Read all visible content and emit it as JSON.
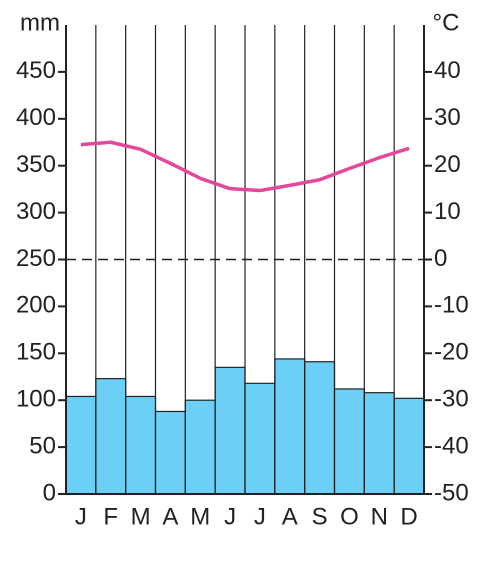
{
  "chart_data": {
    "type": "climate",
    "categories": [
      "J",
      "F",
      "M",
      "A",
      "M",
      "J",
      "J",
      "A",
      "S",
      "O",
      "N",
      "D"
    ],
    "y_label": "mm",
    "y2_label": "°C",
    "ylim": [
      0,
      500
    ],
    "yticks": [
      0,
      50,
      100,
      150,
      200,
      250,
      300,
      350,
      400,
      450
    ],
    "y2lim": [
      -50,
      50
    ],
    "y2ticks": [
      -50,
      -40,
      -30,
      -20,
      -10,
      0,
      10,
      20,
      30,
      40
    ],
    "series": [
      {
        "type": "bar",
        "color": "#6ccff6",
        "values": [
          104,
          123,
          104,
          88,
          100,
          135,
          118,
          144,
          141,
          112,
          108,
          102
        ]
      },
      {
        "type": "line",
        "axis": "y2",
        "color": "#e5489a",
        "values": [
          24.5,
          25,
          23.5,
          20.5,
          17.3,
          15.1,
          14.7,
          15.8,
          17,
          19.4,
          21.7,
          23.7
        ]
      }
    ]
  }
}
